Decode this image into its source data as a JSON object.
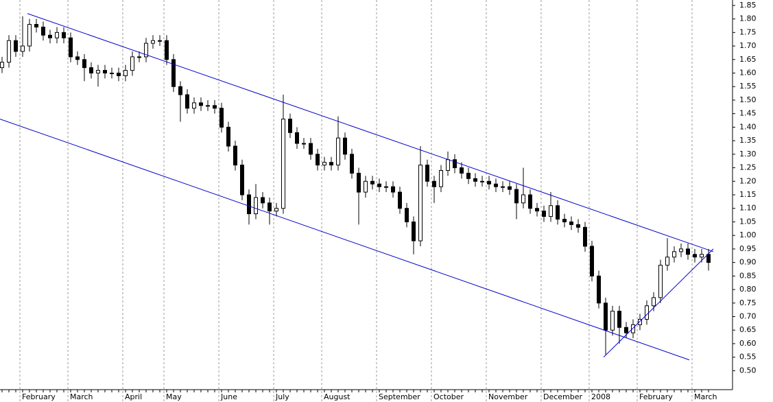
{
  "chart_data": {
    "type": "candlestick",
    "categories": [
      null,
      null,
      null,
      "February",
      null,
      null,
      null,
      null,
      null,
      null,
      "March",
      null,
      null,
      null,
      null,
      null,
      null,
      null,
      "April",
      null,
      null,
      null,
      null,
      null,
      "May",
      null,
      null,
      null,
      null,
      null,
      null,
      null,
      "June",
      null,
      null,
      null,
      null,
      null,
      null,
      null,
      "July",
      null,
      null,
      null,
      null,
      null,
      null,
      "August",
      null,
      null,
      null,
      null,
      null,
      null,
      null,
      "September",
      null,
      null,
      null,
      null,
      null,
      null,
      null,
      "October",
      null,
      null,
      null,
      null,
      null,
      null,
      null,
      "November",
      null,
      null,
      null,
      null,
      null,
      null,
      null,
      "December",
      null,
      null,
      null,
      null,
      null,
      null,
      "2008",
      null,
      null,
      null,
      null,
      null,
      null,
      "February",
      null,
      null,
      null,
      null,
      null,
      null,
      null,
      "March",
      null,
      null
    ],
    "open": [
      1.62,
      1.64,
      1.72,
      1.68,
      1.7,
      1.78,
      1.77,
      1.74,
      1.73,
      1.75,
      1.73,
      1.66,
      1.65,
      1.62,
      1.6,
      1.61,
      1.6,
      1.6,
      1.59,
      1.61,
      1.66,
      1.66,
      1.71,
      1.72,
      1.72,
      1.65,
      1.55,
      1.52,
      1.47,
      1.49,
      1.48,
      1.48,
      1.47,
      1.4,
      1.33,
      1.26,
      1.15,
      1.08,
      1.14,
      1.12,
      1.09,
      1.1,
      1.43,
      1.38,
      1.34,
      1.34,
      1.3,
      1.26,
      1.27,
      1.26,
      1.36,
      1.3,
      1.23,
      1.16,
      1.2,
      1.19,
      1.18,
      1.18,
      1.16,
      1.1,
      1.05,
      0.98,
      1.26,
      1.2,
      1.18,
      1.24,
      1.28,
      1.25,
      1.23,
      1.21,
      1.2,
      1.2,
      1.19,
      1.18,
      1.18,
      1.17,
      1.12,
      1.15,
      1.1,
      1.09,
      1.07,
      1.11,
      1.06,
      1.05,
      1.04,
      1.03,
      0.96,
      0.85,
      0.75,
      0.65,
      0.72,
      0.66,
      0.64,
      0.67,
      0.69,
      0.74,
      0.77,
      0.89,
      0.92,
      0.94,
      0.95,
      0.93,
      0.92,
      0.93
    ],
    "high": [
      1.66,
      1.74,
      1.74,
      1.81,
      1.8,
      1.8,
      1.79,
      1.76,
      1.77,
      1.77,
      1.75,
      1.68,
      1.67,
      1.64,
      1.63,
      1.63,
      1.62,
      1.62,
      1.63,
      1.68,
      1.68,
      1.73,
      1.74,
      1.74,
      1.74,
      1.67,
      1.57,
      1.54,
      1.51,
      1.51,
      1.5,
      1.5,
      1.49,
      1.42,
      1.35,
      1.28,
      1.17,
      1.19,
      1.16,
      1.14,
      1.12,
      1.52,
      1.45,
      1.4,
      1.36,
      1.36,
      1.32,
      1.29,
      1.29,
      1.44,
      1.38,
      1.32,
      1.25,
      1.22,
      1.22,
      1.21,
      1.2,
      1.2,
      1.18,
      1.12,
      1.07,
      1.33,
      1.28,
      1.22,
      1.26,
      1.31,
      1.3,
      1.27,
      1.25,
      1.23,
      1.22,
      1.22,
      1.21,
      1.2,
      1.2,
      1.19,
      1.25,
      1.17,
      1.12,
      1.11,
      1.16,
      1.13,
      1.08,
      1.07,
      1.06,
      1.05,
      0.98,
      0.87,
      0.77,
      0.74,
      0.74,
      0.68,
      0.69,
      0.71,
      0.76,
      0.79,
      0.91,
      0.99,
      0.96,
      0.97,
      0.97,
      0.95,
      0.95,
      0.95
    ],
    "low": [
      1.6,
      1.62,
      1.66,
      1.66,
      1.68,
      1.75,
      1.72,
      1.71,
      1.71,
      1.71,
      1.64,
      1.63,
      1.57,
      1.58,
      1.55,
      1.58,
      1.58,
      1.57,
      1.57,
      1.59,
      1.64,
      1.64,
      1.69,
      1.7,
      1.63,
      1.53,
      1.42,
      1.45,
      1.45,
      1.46,
      1.46,
      1.45,
      1.38,
      1.31,
      1.24,
      1.13,
      1.04,
      1.06,
      1.1,
      1.04,
      1.07,
      1.08,
      1.36,
      1.32,
      1.32,
      1.28,
      1.24,
      1.24,
      1.24,
      1.24,
      1.28,
      1.21,
      1.04,
      1.14,
      1.17,
      1.16,
      1.16,
      1.14,
      1.08,
      1.03,
      0.93,
      0.96,
      1.18,
      1.12,
      1.16,
      1.22,
      1.23,
      1.21,
      1.19,
      1.18,
      1.18,
      1.17,
      1.16,
      1.16,
      1.15,
      1.06,
      1.1,
      1.08,
      1.07,
      1.05,
      1.05,
      1.04,
      1.03,
      1.02,
      1.01,
      0.94,
      0.83,
      0.73,
      0.56,
      0.63,
      0.6,
      0.62,
      0.62,
      0.65,
      0.67,
      0.72,
      0.75,
      0.87,
      0.9,
      0.92,
      0.91,
      0.9,
      0.9,
      0.87
    ],
    "close": [
      1.64,
      1.72,
      1.68,
      1.7,
      1.78,
      1.77,
      1.74,
      1.73,
      1.75,
      1.73,
      1.66,
      1.65,
      1.62,
      1.6,
      1.61,
      1.6,
      1.6,
      1.59,
      1.61,
      1.66,
      1.66,
      1.71,
      1.72,
      1.72,
      1.65,
      1.55,
      1.52,
      1.47,
      1.49,
      1.48,
      1.48,
      1.47,
      1.4,
      1.33,
      1.26,
      1.15,
      1.08,
      1.14,
      1.12,
      1.09,
      1.1,
      1.43,
      1.38,
      1.34,
      1.34,
      1.3,
      1.26,
      1.27,
      1.26,
      1.36,
      1.3,
      1.23,
      1.16,
      1.2,
      1.19,
      1.18,
      1.18,
      1.16,
      1.1,
      1.05,
      0.98,
      1.26,
      1.2,
      1.18,
      1.24,
      1.28,
      1.25,
      1.23,
      1.21,
      1.2,
      1.2,
      1.19,
      1.18,
      1.18,
      1.17,
      1.12,
      1.15,
      1.1,
      1.09,
      1.07,
      1.11,
      1.06,
      1.05,
      1.04,
      1.03,
      0.96,
      0.85,
      0.75,
      0.65,
      0.72,
      0.66,
      0.64,
      0.67,
      0.69,
      0.74,
      0.77,
      0.89,
      0.92,
      0.94,
      0.95,
      0.93,
      0.92,
      0.93,
      0.9
    ],
    "color": "#000000",
    "trendlines": [
      {
        "x": [
          3.7,
          103.7
        ],
        "values": [
          1.82,
          0.94
        ],
        "color": "#0000cc"
      },
      {
        "x": [
          -0.3,
          100.2
        ],
        "values": [
          1.43,
          0.54
        ],
        "color": "#0000cc"
      },
      {
        "x": [
          87.7,
          103.7
        ],
        "values": [
          0.55,
          0.95
        ],
        "color": "#0000cc"
      }
    ],
    "ylim": [
      0.43,
      1.87
    ],
    "yticks": [
      {
        "value": 0.5,
        "label": "0.50"
      },
      0.55,
      {
        "value": 0.6,
        "label": "0.60"
      },
      0.65,
      {
        "value": 0.7,
        "label": "0.70"
      },
      0.75,
      {
        "value": 0.8,
        "label": "0.80"
      },
      0.85,
      {
        "value": 0.9,
        "label": "0.90"
      },
      0.95,
      {
        "value": 1,
        "label": "1.00"
      },
      1.05,
      {
        "value": 1.1,
        "label": "1.10"
      },
      1.15,
      {
        "value": 1.2,
        "label": "1.20"
      },
      1.25,
      {
        "value": 1.3,
        "label": "1.30"
      },
      1.35,
      {
        "value": 1.4,
        "label": "1.40"
      },
      1.45,
      {
        "value": 1.5,
        "label": "1.50"
      },
      1.55,
      {
        "value": 1.6,
        "label": "1.60"
      },
      1.65,
      {
        "value": 1.7,
        "label": "1.70"
      },
      1.75,
      {
        "value": 1.8,
        "label": "1.80"
      },
      1.85
    ],
    "y_axis_side": "right",
    "grid": "x"
  }
}
